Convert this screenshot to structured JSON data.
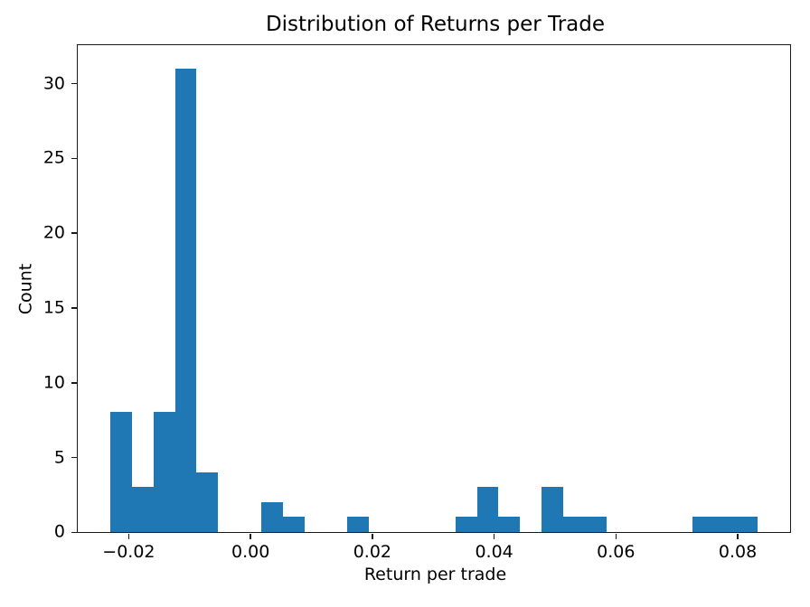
{
  "chart_data": {
    "type": "histogram",
    "title": "Distribution of Returns per Trade",
    "xlabel": "Return per trade",
    "ylabel": "Count",
    "bar_color": "#1f77b4",
    "spine_color": "#1a1a1a",
    "text_color": "#000000",
    "grid": false,
    "legend": null,
    "xlim": [
      -0.0283,
      0.0886
    ],
    "ylim": [
      0,
      32.55
    ],
    "bin_edges": [
      -0.02296,
      -0.01942,
      -0.01588,
      -0.01233,
      -0.00879,
      -0.00525,
      -0.00171,
      0.00183,
      0.00538,
      0.00892,
      0.01246,
      0.016,
      0.01954,
      0.02309,
      0.02663,
      0.03017,
      0.03371,
      0.03725,
      0.0408,
      0.04434,
      0.04788,
      0.05142,
      0.05496,
      0.05851,
      0.06205,
      0.06559,
      0.06913,
      0.07267,
      0.07622,
      0.07976,
      0.0833
    ],
    "counts": [
      8,
      3,
      8,
      31,
      4,
      0,
      0,
      2,
      1,
      0,
      0,
      1,
      0,
      0,
      0,
      0,
      1,
      3,
      1,
      0,
      3,
      1,
      1,
      0,
      0,
      0,
      0,
      1,
      1,
      1
    ],
    "x_ticks": [
      {
        "value": -0.02,
        "label": "−0.02"
      },
      {
        "value": 0.0,
        "label": "0.00"
      },
      {
        "value": 0.02,
        "label": "0.02"
      },
      {
        "value": 0.04,
        "label": "0.04"
      },
      {
        "value": 0.06,
        "label": "0.06"
      },
      {
        "value": 0.08,
        "label": "0.08"
      }
    ],
    "y_ticks": [
      {
        "value": 0,
        "label": "0"
      },
      {
        "value": 5,
        "label": "5"
      },
      {
        "value": 10,
        "label": "10"
      },
      {
        "value": 15,
        "label": "15"
      },
      {
        "value": 20,
        "label": "20"
      },
      {
        "value": 25,
        "label": "25"
      },
      {
        "value": 30,
        "label": "30"
      }
    ]
  }
}
